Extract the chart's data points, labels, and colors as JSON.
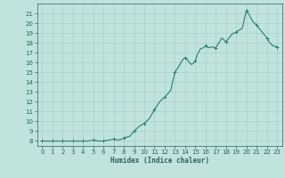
{
  "line_color": "#2d7d6e",
  "bg_color": "#c0e4dc",
  "grid_color": "#a8d0c8",
  "text_color": "#2d6060",
  "xlabel": "Humidex (Indice chaleur)",
  "ylim": [
    7.5,
    22.0
  ],
  "xlim": [
    -0.5,
    23.5
  ],
  "yticks": [
    8,
    9,
    10,
    11,
    12,
    13,
    14,
    15,
    16,
    17,
    18,
    19,
    20,
    21
  ],
  "xticks": [
    0,
    1,
    2,
    3,
    4,
    5,
    6,
    7,
    8,
    9,
    10,
    11,
    12,
    13,
    14,
    15,
    16,
    17,
    18,
    19,
    20,
    21,
    22,
    23
  ],
  "hours": [
    0,
    0.5,
    1,
    1.5,
    2,
    2.5,
    3,
    3.5,
    4,
    4.5,
    5,
    5.5,
    6,
    6.5,
    7,
    7.5,
    8,
    8.3,
    8.6,
    9,
    9.5,
    10,
    10.5,
    11,
    11.5,
    12,
    12.3,
    12.6,
    13,
    13.2,
    13.5,
    13.7,
    14,
    14.2,
    14.4,
    14.6,
    14.8,
    15,
    15.2,
    15.5,
    15.8,
    16,
    16.3,
    16.6,
    17,
    17.3,
    17.6,
    18,
    18.3,
    18.6,
    19,
    19.3,
    19.6,
    20,
    20.3,
    20.6,
    21,
    21.3,
    22,
    22.3,
    22.6,
    23
  ],
  "humidex": [
    8.0,
    8.0,
    8.0,
    8.0,
    8.0,
    8.0,
    8.0,
    8.0,
    8.0,
    8.0,
    8.1,
    8.0,
    8.0,
    8.1,
    8.2,
    8.1,
    8.3,
    8.4,
    8.5,
    9.0,
    9.5,
    9.8,
    10.3,
    11.2,
    12.0,
    12.5,
    12.8,
    13.2,
    15.0,
    15.3,
    15.8,
    16.2,
    16.5,
    16.3,
    16.0,
    15.8,
    15.9,
    16.2,
    16.8,
    17.4,
    17.5,
    17.7,
    17.5,
    17.6,
    17.5,
    18.0,
    18.5,
    18.1,
    18.5,
    18.9,
    19.1,
    19.3,
    19.5,
    21.3,
    20.8,
    20.2,
    19.8,
    19.4,
    18.5,
    18.0,
    17.7,
    17.6
  ],
  "marker_hours": [
    0,
    1,
    2,
    3,
    4,
    5,
    6,
    7,
    8,
    9,
    10,
    11,
    12,
    13,
    14,
    15,
    16,
    17,
    18,
    19,
    20,
    21,
    22,
    23
  ],
  "marker_y": [
    8.0,
    8.0,
    8.0,
    8.0,
    8.0,
    8.1,
    8.0,
    8.2,
    8.3,
    9.0,
    9.8,
    11.2,
    12.5,
    15.0,
    16.5,
    16.2,
    17.7,
    17.5,
    18.1,
    19.1,
    21.3,
    19.8,
    18.5,
    17.6
  ]
}
